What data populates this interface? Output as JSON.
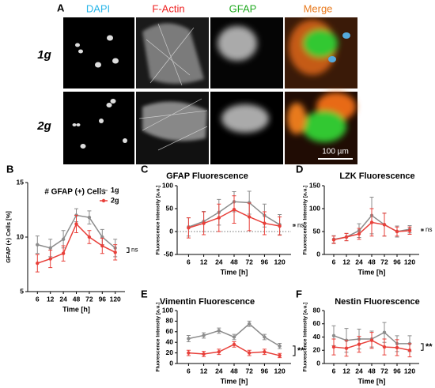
{
  "figure": {
    "panel_label": "A",
    "columns": [
      "DAPI",
      "F-Actin",
      "GFAP",
      "Merge"
    ],
    "rows": [
      "1g",
      "2g"
    ],
    "scale_bar": "100 µm"
  },
  "chart_data": [
    {
      "type": "line",
      "panel": "B",
      "title": "# GFAP (+) Cells",
      "xlabel": "Time [h]",
      "ylabel": "GFAP (+) Cells [%]",
      "categories": [
        "6",
        "12",
        "24",
        "48",
        "72",
        "96",
        "120"
      ],
      "ylim": [
        5,
        15
      ],
      "yticks": [
        5,
        10,
        15
      ],
      "legend": "upper right",
      "annotation": "ns",
      "series": [
        {
          "name": "1g",
          "color": "#8c8c8c",
          "values": [
            9.3,
            9.0,
            9.8,
            12.0,
            11.8,
            10.0,
            9.0
          ],
          "errors": [
            0.8,
            0.8,
            0.8,
            0.6,
            0.6,
            0.7,
            0.8
          ]
        },
        {
          "name": "2g",
          "color": "#e8403a",
          "values": [
            7.6,
            8.0,
            8.5,
            11.2,
            10.0,
            9.2,
            8.6
          ],
          "errors": [
            0.8,
            0.8,
            0.7,
            0.8,
            0.6,
            0.7,
            0.7
          ]
        }
      ]
    },
    {
      "type": "line",
      "panel": "C",
      "title": "GFAP Fluorescence",
      "xlabel": "Time [h]",
      "ylabel": "Fluorescence Intensity [a.u.]",
      "categories": [
        "6",
        "12",
        "24",
        "48",
        "72",
        "96",
        "120"
      ],
      "ylim": [
        -50,
        100
      ],
      "yticks": [
        -50,
        0,
        50,
        100
      ],
      "reference_line": 0,
      "annotation": "ns",
      "series": [
        {
          "name": "1g",
          "color": "#8c8c8c",
          "values": [
            10,
            22,
            42,
            65,
            63,
            35,
            15
          ],
          "errors": [
            20,
            22,
            28,
            22,
            25,
            25,
            22
          ]
        },
        {
          "name": "2g",
          "color": "#e8403a",
          "values": [
            8,
            18,
            30,
            48,
            32,
            18,
            12
          ],
          "errors": [
            22,
            25,
            30,
            30,
            30,
            25,
            20
          ]
        }
      ]
    },
    {
      "type": "line",
      "panel": "D",
      "title": "LZK Fluorescence",
      "xlabel": "Time [h]",
      "ylabel": "Fluorescence Intensity [a.u.]",
      "categories": [
        "6",
        "12",
        "24",
        "48",
        "72",
        "96",
        "120"
      ],
      "ylim": [
        0,
        150
      ],
      "yticks": [
        0,
        50,
        100,
        150
      ],
      "annotation": "ns",
      "series": [
        {
          "name": "1g",
          "color": "#8c8c8c",
          "values": [
            33,
            38,
            52,
            85,
            65,
            50,
            55
          ],
          "errors": [
            8,
            8,
            15,
            40,
            25,
            12,
            8
          ]
        },
        {
          "name": "2g",
          "color": "#e8403a",
          "values": [
            32,
            38,
            45,
            70,
            65,
            50,
            52
          ],
          "errors": [
            8,
            8,
            12,
            30,
            25,
            10,
            8
          ]
        }
      ]
    },
    {
      "type": "line",
      "panel": "E",
      "title": "Vimentin Fluorescence",
      "xlabel": "Time [h]",
      "ylabel": "Fluorescence Intensity [a.u.]",
      "categories": [
        "6",
        "12",
        "24",
        "48",
        "72",
        "96",
        "120"
      ],
      "ylim": [
        0,
        100
      ],
      "yticks": [
        0,
        20,
        40,
        60,
        80,
        100
      ],
      "annotation": "**",
      "series": [
        {
          "name": "1g",
          "color": "#8c8c8c",
          "values": [
            47,
            53,
            62,
            50,
            75,
            50,
            33
          ],
          "errors": [
            6,
            5,
            5,
            5,
            5,
            5,
            5
          ]
        },
        {
          "name": "2g",
          "color": "#e8403a",
          "values": [
            20,
            18,
            22,
            36,
            20,
            22,
            15
          ],
          "errors": [
            5,
            5,
            5,
            5,
            5,
            5,
            4
          ]
        }
      ]
    },
    {
      "type": "line",
      "panel": "F",
      "title": "Nestin Fluorescence",
      "xlabel": "Time [h]",
      "ylabel": "Fluorescence Intensity [a.u.]",
      "categories": [
        "6",
        "12",
        "24",
        "48",
        "72",
        "96",
        "120"
      ],
      "ylim": [
        0,
        80
      ],
      "yticks": [
        0,
        20,
        40,
        60,
        80
      ],
      "annotation": "**",
      "series": [
        {
          "name": "1g",
          "color": "#8c8c8c",
          "values": [
            42,
            35,
            37,
            37,
            47,
            30,
            30
          ],
          "errors": [
            15,
            18,
            15,
            12,
            15,
            12,
            12
          ]
        },
        {
          "name": "2g",
          "color": "#e8403a",
          "values": [
            25,
            23,
            29,
            35,
            25,
            24,
            20
          ],
          "errors": [
            12,
            12,
            12,
            12,
            12,
            12,
            10
          ]
        }
      ]
    }
  ]
}
